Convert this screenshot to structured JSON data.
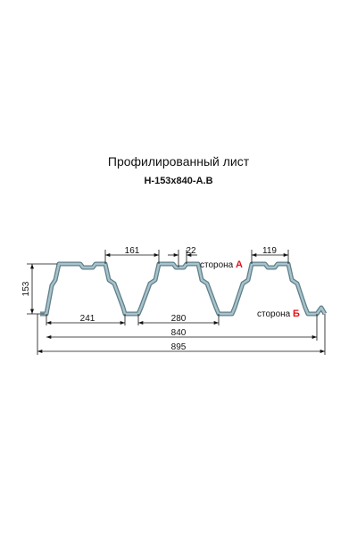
{
  "header": {
    "title": "Профилированный лист",
    "subtitle": "Н-153х840-А.В"
  },
  "dimensions": {
    "top_flange": "161",
    "notch": "22",
    "top_rib": "119",
    "height": "153",
    "bottom_left": "241",
    "pitch": "280",
    "useful_width": "840",
    "total_width": "895"
  },
  "sides": {
    "a": {
      "text": "сторона",
      "letter": "А"
    },
    "b": {
      "text": "сторона",
      "letter": "Б"
    }
  }
}
